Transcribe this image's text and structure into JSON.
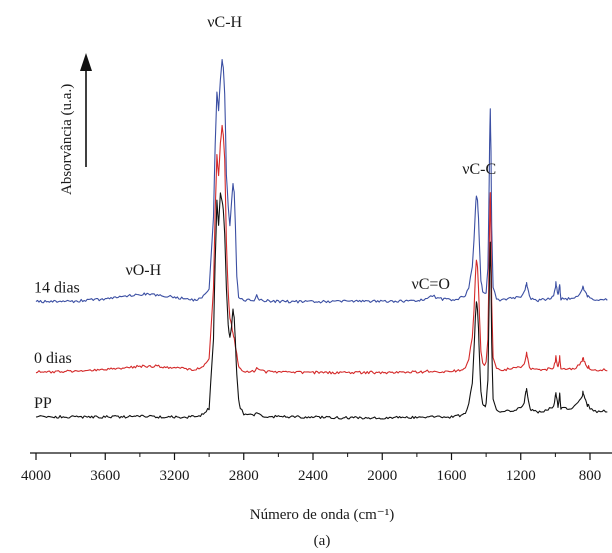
{
  "chart_data": {
    "type": "line",
    "title": "",
    "xlabel": "Número de onda (cm⁻¹)",
    "ylabel": "Absorvância (u.a.)",
    "panel_label": "(a)",
    "xlim": [
      4000,
      700
    ],
    "x_reversed": true,
    "ylim": [
      0,
      1.0
    ],
    "y_ticks_shown": false,
    "x_ticks": [
      4000,
      3600,
      3200,
      2800,
      2400,
      2000,
      1600,
      1200,
      800
    ],
    "grid": false,
    "legend": "none",
    "annotations": [
      {
        "text": "νC-H",
        "x": 2910
      },
      {
        "text": "νO-H",
        "x": 3380
      },
      {
        "text": "νC=O",
        "x": 1720
      },
      {
        "text": "νC-C",
        "x": 1440
      }
    ],
    "series": [
      {
        "name": "14 dias",
        "color": "#3b4fa3",
        "x": [
          4000,
          3800,
          3600,
          3500,
          3400,
          3300,
          3200,
          3100,
          3050,
          3000,
          2975,
          2965,
          2955,
          2945,
          2935,
          2925,
          2918,
          2910,
          2900,
          2890,
          2880,
          2870,
          2862,
          2855,
          2848,
          2840,
          2830,
          2820,
          2800,
          2780,
          2760,
          2740,
          2725,
          2710,
          2680,
          2600,
          2400,
          2200,
          2000,
          1900,
          1800,
          1760,
          1740,
          1720,
          1700,
          1680,
          1660,
          1620,
          1600,
          1560,
          1520,
          1500,
          1480,
          1470,
          1462,
          1456,
          1450,
          1444,
          1438,
          1430,
          1420,
          1410,
          1400,
          1390,
          1385,
          1380,
          1376,
          1372,
          1368,
          1360,
          1340,
          1320,
          1300,
          1260,
          1200,
          1180,
          1170,
          1166,
          1160,
          1150,
          1140,
          1100,
          1050,
          1010,
          1000,
          997,
          992,
          985,
          980,
          975,
          972,
          968,
          960,
          940,
          900,
          880,
          860,
          845,
          841,
          835,
          825,
          815,
          808,
          800,
          780,
          750,
          720,
          700
        ],
        "y": [
          0.418,
          0.418,
          0.424,
          0.43,
          0.436,
          0.434,
          0.428,
          0.422,
          0.425,
          0.45,
          0.62,
          0.8,
          0.925,
          0.88,
          0.95,
          1.0,
          0.98,
          0.92,
          0.72,
          0.65,
          0.6,
          0.66,
          0.7,
          0.68,
          0.6,
          0.48,
          0.43,
          0.425,
          0.421,
          0.421,
          0.421,
          0.421,
          0.433,
          0.423,
          0.42,
          0.418,
          0.418,
          0.418,
          0.418,
          0.419,
          0.42,
          0.424,
          0.428,
          0.432,
          0.43,
          0.426,
          0.424,
          0.422,
          0.423,
          0.425,
          0.432,
          0.45,
          0.5,
          0.57,
          0.64,
          0.675,
          0.66,
          0.62,
          0.55,
          0.47,
          0.44,
          0.435,
          0.44,
          0.5,
          0.62,
          0.8,
          0.88,
          0.78,
          0.6,
          0.45,
          0.425,
          0.421,
          0.422,
          0.426,
          0.428,
          0.44,
          0.455,
          0.463,
          0.45,
          0.43,
          0.424,
          0.421,
          0.423,
          0.43,
          0.45,
          0.463,
          0.45,
          0.435,
          0.445,
          0.458,
          0.44,
          0.425,
          0.428,
          0.424,
          0.425,
          0.43,
          0.435,
          0.45,
          0.458,
          0.448,
          0.44,
          0.428,
          0.432,
          0.425,
          0.422,
          0.421,
          0.423,
          0.421
        ]
      },
      {
        "name": "0 dias",
        "color": "#d42a2a",
        "x": [
          4000,
          3800,
          3600,
          3500,
          3400,
          3300,
          3200,
          3100,
          3050,
          3000,
          2975,
          2965,
          2955,
          2945,
          2935,
          2925,
          2918,
          2910,
          2900,
          2890,
          2880,
          2870,
          2862,
          2855,
          2848,
          2840,
          2830,
          2820,
          2800,
          2780,
          2760,
          2740,
          2725,
          2710,
          2680,
          2600,
          2400,
          2200,
          2000,
          1900,
          1800,
          1760,
          1740,
          1720,
          1700,
          1680,
          1660,
          1620,
          1600,
          1560,
          1520,
          1500,
          1480,
          1470,
          1462,
          1456,
          1450,
          1444,
          1438,
          1430,
          1420,
          1410,
          1400,
          1390,
          1385,
          1380,
          1376,
          1372,
          1368,
          1360,
          1340,
          1320,
          1300,
          1260,
          1200,
          1180,
          1170,
          1166,
          1160,
          1150,
          1140,
          1100,
          1050,
          1010,
          1000,
          997,
          992,
          985,
          980,
          975,
          972,
          968,
          960,
          940,
          900,
          880,
          860,
          845,
          841,
          835,
          825,
          815,
          808,
          800,
          780,
          750,
          720,
          700
        ],
        "y": [
          0.248,
          0.25,
          0.254,
          0.258,
          0.262,
          0.262,
          0.258,
          0.254,
          0.256,
          0.28,
          0.45,
          0.64,
          0.77,
          0.72,
          0.8,
          0.84,
          0.82,
          0.76,
          0.56,
          0.44,
          0.38,
          0.36,
          0.34,
          0.33,
          0.31,
          0.29,
          0.262,
          0.255,
          0.25,
          0.249,
          0.25,
          0.25,
          0.26,
          0.252,
          0.249,
          0.248,
          0.247,
          0.247,
          0.247,
          0.247,
          0.248,
          0.249,
          0.25,
          0.25,
          0.25,
          0.249,
          0.249,
          0.25,
          0.25,
          0.252,
          0.26,
          0.28,
          0.33,
          0.4,
          0.48,
          0.52,
          0.5,
          0.45,
          0.38,
          0.3,
          0.27,
          0.265,
          0.27,
          0.33,
          0.45,
          0.61,
          0.68,
          0.58,
          0.42,
          0.28,
          0.255,
          0.252,
          0.253,
          0.256,
          0.26,
          0.27,
          0.285,
          0.295,
          0.28,
          0.26,
          0.255,
          0.252,
          0.254,
          0.26,
          0.275,
          0.285,
          0.27,
          0.26,
          0.27,
          0.285,
          0.27,
          0.255,
          0.258,
          0.254,
          0.255,
          0.26,
          0.265,
          0.275,
          0.285,
          0.275,
          0.268,
          0.258,
          0.262,
          0.255,
          0.252,
          0.251,
          0.253,
          0.251
        ]
      },
      {
        "name": "PP",
        "color": "#111111",
        "x": [
          4000,
          3800,
          3600,
          3500,
          3400,
          3300,
          3200,
          3100,
          3050,
          3000,
          2975,
          2965,
          2955,
          2945,
          2935,
          2925,
          2918,
          2910,
          2900,
          2890,
          2880,
          2870,
          2862,
          2855,
          2848,
          2840,
          2830,
          2820,
          2800,
          2780,
          2760,
          2740,
          2725,
          2710,
          2680,
          2600,
          2400,
          2200,
          2000,
          1900,
          1800,
          1760,
          1740,
          1720,
          1700,
          1680,
          1660,
          1620,
          1600,
          1560,
          1520,
          1500,
          1480,
          1470,
          1462,
          1456,
          1450,
          1444,
          1438,
          1430,
          1420,
          1410,
          1400,
          1390,
          1385,
          1380,
          1376,
          1372,
          1368,
          1360,
          1340,
          1320,
          1300,
          1260,
          1200,
          1180,
          1170,
          1166,
          1160,
          1150,
          1140,
          1100,
          1050,
          1010,
          1000,
          997,
          992,
          985,
          980,
          975,
          972,
          968,
          960,
          940,
          900,
          880,
          860,
          845,
          841,
          835,
          825,
          815,
          808,
          800,
          780,
          750,
          720,
          700
        ],
        "y": [
          0.14,
          0.14,
          0.14,
          0.14,
          0.142,
          0.14,
          0.14,
          0.14,
          0.142,
          0.16,
          0.33,
          0.52,
          0.66,
          0.6,
          0.68,
          0.66,
          0.64,
          0.58,
          0.45,
          0.36,
          0.33,
          0.36,
          0.4,
          0.38,
          0.32,
          0.24,
          0.18,
          0.16,
          0.148,
          0.145,
          0.145,
          0.145,
          0.152,
          0.145,
          0.142,
          0.14,
          0.14,
          0.138,
          0.138,
          0.138,
          0.139,
          0.14,
          0.14,
          0.14,
          0.14,
          0.14,
          0.14,
          0.14,
          0.14,
          0.142,
          0.15,
          0.17,
          0.22,
          0.3,
          0.38,
          0.42,
          0.4,
          0.35,
          0.28,
          0.2,
          0.17,
          0.165,
          0.17,
          0.23,
          0.35,
          0.5,
          0.56,
          0.48,
          0.32,
          0.18,
          0.155,
          0.15,
          0.152,
          0.155,
          0.16,
          0.175,
          0.2,
          0.205,
          0.19,
          0.165,
          0.158,
          0.152,
          0.155,
          0.165,
          0.19,
          0.2,
          0.185,
          0.165,
          0.178,
          0.2,
          0.18,
          0.16,
          0.165,
          0.16,
          0.16,
          0.168,
          0.178,
          0.19,
          0.2,
          0.19,
          0.18,
          0.165,
          0.17,
          0.16,
          0.155,
          0.152,
          0.155,
          0.152
        ]
      }
    ]
  }
}
